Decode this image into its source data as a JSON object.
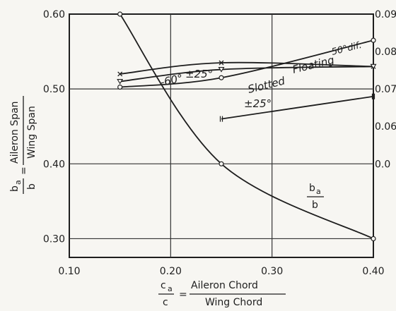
{
  "chart_data": {
    "type": "line",
    "x_axis": {
      "label_numerator": "c",
      "label_numerator_sub": "a",
      "label_denominator": "c",
      "label_text_numerator": "Aileron Chord",
      "label_text_denominator": "Wing Chord",
      "range": [
        0.1,
        0.4
      ],
      "ticks": [
        "0.10",
        "0.20",
        "0.30",
        "0.40"
      ]
    },
    "y_left_axis": {
      "label_numerator": "b",
      "label_numerator_sub": "a",
      "label_denominator": "b",
      "label_text_numerator": "Aileron Span",
      "label_text_denominator": "Wing Span",
      "range": [
        0.275,
        0.6
      ],
      "ticks": [
        "0.60",
        "0.50",
        "0.40",
        "0.30"
      ]
    },
    "y_right_axis": {
      "ticks": [
        "0.09",
        "0.08",
        "0.07",
        "0.06",
        "0.0"
      ]
    },
    "grid": true,
    "series": [
      {
        "name": "ba/b",
        "axis": "left",
        "points": [
          [
            0.15,
            0.6
          ],
          [
            0.25,
            0.4
          ],
          [
            0.4,
            0.3
          ]
        ],
        "label_num": "b",
        "label_sub": "a",
        "label_den": "b"
      },
      {
        "name": "±25°",
        "axis": "right",
        "points": [
          [
            0.15,
            0.074
          ],
          [
            0.25,
            0.077
          ],
          [
            0.4,
            0.076
          ]
        ]
      },
      {
        "name": "-60°",
        "axis": "right",
        "points": [
          [
            0.15,
            0.072
          ],
          [
            0.25,
            0.0752
          ],
          [
            0.4,
            0.076
          ]
        ]
      },
      {
        "name": "Floating 50° dif.",
        "axis": "right",
        "points": [
          [
            0.15,
            0.0705
          ],
          [
            0.25,
            0.073
          ],
          [
            0.4,
            0.083
          ]
        ]
      },
      {
        "name": "Slotted ±25°",
        "axis": "right",
        "points": [
          [
            0.25,
            0.062
          ],
          [
            0.4,
            0.068
          ]
        ]
      }
    ],
    "annotations": {
      "pm25": "±25°",
      "m60": "-60°",
      "floating": "Floating",
      "floating_dif": "50°dif.",
      "slotted": "Slotted",
      "slotted_pm": "±25°"
    }
  }
}
